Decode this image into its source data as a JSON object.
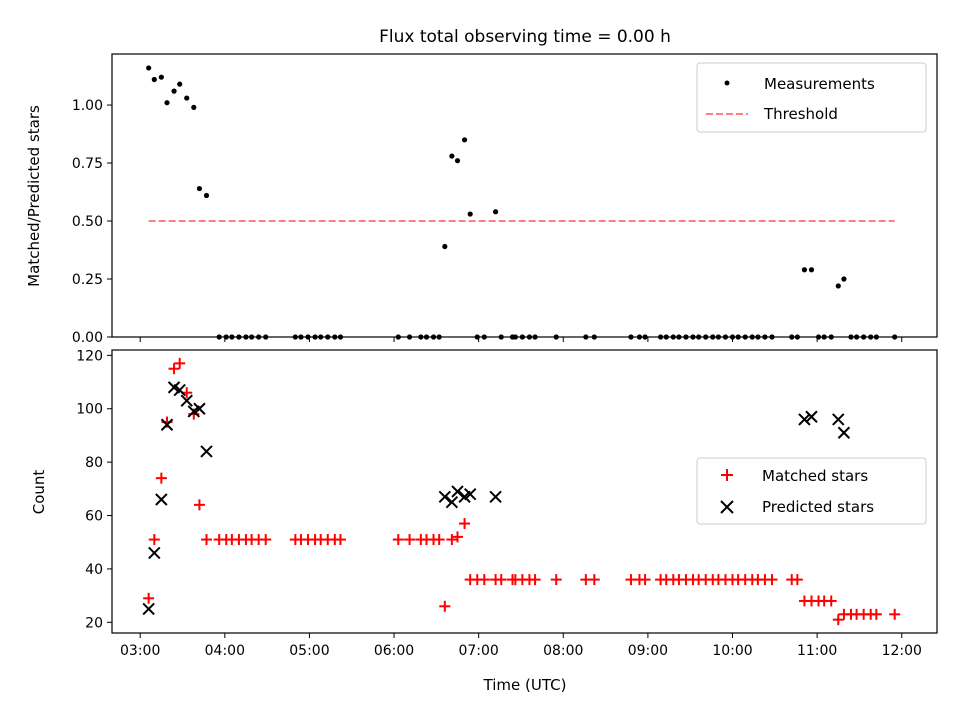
{
  "chart_data": [
    {
      "type": "scatter",
      "title": "Flux total observing time = 0.00 h",
      "xlabel": "",
      "ylabel": "Matched/Predicted stars",
      "x_time_range": [
        "02:40",
        "12:25"
      ],
      "ylim": [
        0,
        1.22
      ],
      "yticks": [
        "0.00",
        "0.25",
        "0.50",
        "0.75",
        "1.00"
      ],
      "legend": {
        "position": "upper right",
        "entries": [
          {
            "label": "Measurements",
            "color": "#000000",
            "marker": "dot"
          },
          {
            "label": "Threshold",
            "color": "#ff7f7f",
            "marker": "dashed-line"
          }
        ]
      },
      "series": [
        {
          "name": "Measurements",
          "color": "#000000",
          "points": [
            [
              "03:06",
              1.16
            ],
            [
              "03:10",
              1.11
            ],
            [
              "03:15",
              1.12
            ],
            [
              "03:19",
              1.01
            ],
            [
              "03:24",
              1.06
            ],
            [
              "03:28",
              1.09
            ],
            [
              "03:33",
              1.03
            ],
            [
              "03:38",
              0.99
            ],
            [
              "03:42",
              0.64
            ],
            [
              "03:47",
              0.61
            ],
            [
              "03:56",
              0.0
            ],
            [
              "04:01",
              0.0
            ],
            [
              "04:05",
              0.0
            ],
            [
              "04:10",
              0.0
            ],
            [
              "04:15",
              0.0
            ],
            [
              "04:19",
              0.0
            ],
            [
              "04:24",
              0.0
            ],
            [
              "04:29",
              0.0
            ],
            [
              "04:50",
              0.0
            ],
            [
              "04:54",
              0.0
            ],
            [
              "04:59",
              0.0
            ],
            [
              "05:04",
              0.0
            ],
            [
              "05:08",
              0.0
            ],
            [
              "05:13",
              0.0
            ],
            [
              "05:18",
              0.0
            ],
            [
              "05:22",
              0.0
            ],
            [
              "06:03",
              0.0
            ],
            [
              "06:11",
              0.0
            ],
            [
              "06:19",
              0.0
            ],
            [
              "06:23",
              0.0
            ],
            [
              "06:28",
              0.0
            ],
            [
              "06:32",
              0.0
            ],
            [
              "06:36",
              0.39
            ],
            [
              "06:41",
              0.78
            ],
            [
              "06:45",
              0.76
            ],
            [
              "06:50",
              0.85
            ],
            [
              "06:54",
              0.53
            ],
            [
              "06:59",
              0.0
            ],
            [
              "07:04",
              0.0
            ],
            [
              "07:12",
              0.54
            ],
            [
              "07:16",
              0.0
            ],
            [
              "07:24",
              0.0
            ],
            [
              "07:26",
              0.0
            ],
            [
              "07:31",
              0.0
            ],
            [
              "07:36",
              0.0
            ],
            [
              "07:40",
              0.0
            ],
            [
              "07:55",
              0.0
            ],
            [
              "08:16",
              0.0
            ],
            [
              "08:22",
              0.0
            ],
            [
              "08:48",
              0.0
            ],
            [
              "08:54",
              0.0
            ],
            [
              "08:58",
              0.0
            ],
            [
              "09:09",
              0.0
            ],
            [
              "09:13",
              0.0
            ],
            [
              "09:18",
              0.0
            ],
            [
              "09:22",
              0.0
            ],
            [
              "09:27",
              0.0
            ],
            [
              "09:32",
              0.0
            ],
            [
              "09:36",
              0.0
            ],
            [
              "09:41",
              0.0
            ],
            [
              "09:46",
              0.0
            ],
            [
              "09:50",
              0.0
            ],
            [
              "09:55",
              0.0
            ],
            [
              "10:00",
              0.0
            ],
            [
              "10:04",
              0.0
            ],
            [
              "10:09",
              0.0
            ],
            [
              "10:14",
              0.0
            ],
            [
              "10:18",
              0.0
            ],
            [
              "10:23",
              0.0
            ],
            [
              "10:28",
              0.0
            ],
            [
              "10:42",
              0.0
            ],
            [
              "10:46",
              0.0
            ],
            [
              "10:51",
              0.29
            ],
            [
              "10:56",
              0.29
            ],
            [
              "11:01",
              0.0
            ],
            [
              "11:05",
              0.0
            ],
            [
              "11:10",
              0.0
            ],
            [
              "11:15",
              0.22
            ],
            [
              "11:19",
              0.25
            ],
            [
              "11:24",
              0.0
            ],
            [
              "11:28",
              0.0
            ],
            [
              "11:33",
              0.0
            ],
            [
              "11:38",
              0.0
            ],
            [
              "11:42",
              0.0
            ],
            [
              "11:55",
              0.0
            ]
          ]
        },
        {
          "name": "Threshold",
          "color": "#ff7f7f",
          "line_style": "dashed",
          "points": [
            [
              "03:06",
              0.5
            ],
            [
              "11:55",
              0.5
            ]
          ]
        }
      ]
    },
    {
      "type": "scatter",
      "title": "",
      "xlabel": "Time (UTC)",
      "ylabel": "Count",
      "x_time_range": [
        "02:40",
        "12:25"
      ],
      "xticks": [
        "03:00",
        "04:00",
        "05:00",
        "06:00",
        "07:00",
        "08:00",
        "09:00",
        "10:00",
        "11:00",
        "12:00"
      ],
      "ylim": [
        16,
        122
      ],
      "yticks": [
        "20",
        "40",
        "60",
        "80",
        "100",
        "120"
      ],
      "legend": {
        "position": "center right",
        "entries": [
          {
            "label": "Matched stars",
            "color": "#ff0000",
            "marker": "plus"
          },
          {
            "label": "Predicted stars",
            "color": "#000000",
            "marker": "x"
          }
        ]
      },
      "series": [
        {
          "name": "Matched stars",
          "color": "#ff0000",
          "points": [
            [
              "03:06",
              29
            ],
            [
              "03:10",
              51
            ],
            [
              "03:15",
              74
            ],
            [
              "03:19",
              95
            ],
            [
              "03:24",
              115
            ],
            [
              "03:28",
              117
            ],
            [
              "03:33",
              106
            ],
            [
              "03:38",
              98
            ],
            [
              "03:42",
              64
            ],
            [
              "03:47",
              51
            ],
            [
              "03:56",
              51
            ],
            [
              "04:01",
              51
            ],
            [
              "04:05",
              51
            ],
            [
              "04:10",
              51
            ],
            [
              "04:15",
              51
            ],
            [
              "04:19",
              51
            ],
            [
              "04:24",
              51
            ],
            [
              "04:29",
              51
            ],
            [
              "04:50",
              51
            ],
            [
              "04:54",
              51
            ],
            [
              "04:59",
              51
            ],
            [
              "05:04",
              51
            ],
            [
              "05:08",
              51
            ],
            [
              "05:13",
              51
            ],
            [
              "05:18",
              51
            ],
            [
              "05:22",
              51
            ],
            [
              "06:03",
              51
            ],
            [
              "06:11",
              51
            ],
            [
              "06:19",
              51
            ],
            [
              "06:23",
              51
            ],
            [
              "06:28",
              51
            ],
            [
              "06:32",
              51
            ],
            [
              "06:36",
              26
            ],
            [
              "06:41",
              51
            ],
            [
              "06:45",
              52
            ],
            [
              "06:50",
              57
            ],
            [
              "06:54",
              36
            ],
            [
              "06:59",
              36
            ],
            [
              "07:04",
              36
            ],
            [
              "07:12",
              36
            ],
            [
              "07:16",
              36
            ],
            [
              "07:24",
              36
            ],
            [
              "07:26",
              36
            ],
            [
              "07:31",
              36
            ],
            [
              "07:36",
              36
            ],
            [
              "07:40",
              36
            ],
            [
              "07:55",
              36
            ],
            [
              "08:16",
              36
            ],
            [
              "08:22",
              36
            ],
            [
              "08:48",
              36
            ],
            [
              "08:54",
              36
            ],
            [
              "08:58",
              36
            ],
            [
              "09:09",
              36
            ],
            [
              "09:13",
              36
            ],
            [
              "09:18",
              36
            ],
            [
              "09:22",
              36
            ],
            [
              "09:27",
              36
            ],
            [
              "09:32",
              36
            ],
            [
              "09:36",
              36
            ],
            [
              "09:41",
              36
            ],
            [
              "09:46",
              36
            ],
            [
              "09:50",
              36
            ],
            [
              "09:55",
              36
            ],
            [
              "10:00",
              36
            ],
            [
              "10:04",
              36
            ],
            [
              "10:09",
              36
            ],
            [
              "10:14",
              36
            ],
            [
              "10:18",
              36
            ],
            [
              "10:23",
              36
            ],
            [
              "10:28",
              36
            ],
            [
              "10:42",
              36
            ],
            [
              "10:46",
              36
            ],
            [
              "10:51",
              28
            ],
            [
              "10:56",
              28
            ],
            [
              "11:01",
              28
            ],
            [
              "11:05",
              28
            ],
            [
              "11:10",
              28
            ],
            [
              "11:15",
              21
            ],
            [
              "11:19",
              23
            ],
            [
              "11:24",
              23
            ],
            [
              "11:28",
              23
            ],
            [
              "11:33",
              23
            ],
            [
              "11:38",
              23
            ],
            [
              "11:42",
              23
            ],
            [
              "11:55",
              23
            ]
          ]
        },
        {
          "name": "Predicted stars",
          "color": "#000000",
          "points": [
            [
              "03:06",
              25
            ],
            [
              "03:10",
              46
            ],
            [
              "03:15",
              66
            ],
            [
              "03:19",
              94
            ],
            [
              "03:24",
              108
            ],
            [
              "03:28",
              107
            ],
            [
              "03:33",
              103
            ],
            [
              "03:38",
              99
            ],
            [
              "03:42",
              100
            ],
            [
              "03:47",
              84
            ],
            [
              "06:36",
              67
            ],
            [
              "06:41",
              65
            ],
            [
              "06:45",
              69
            ],
            [
              "06:50",
              67
            ],
            [
              "06:54",
              68
            ],
            [
              "07:12",
              67
            ],
            [
              "10:51",
              96
            ],
            [
              "10:56",
              97
            ],
            [
              "11:15",
              96
            ],
            [
              "11:19",
              91
            ]
          ]
        }
      ]
    }
  ]
}
